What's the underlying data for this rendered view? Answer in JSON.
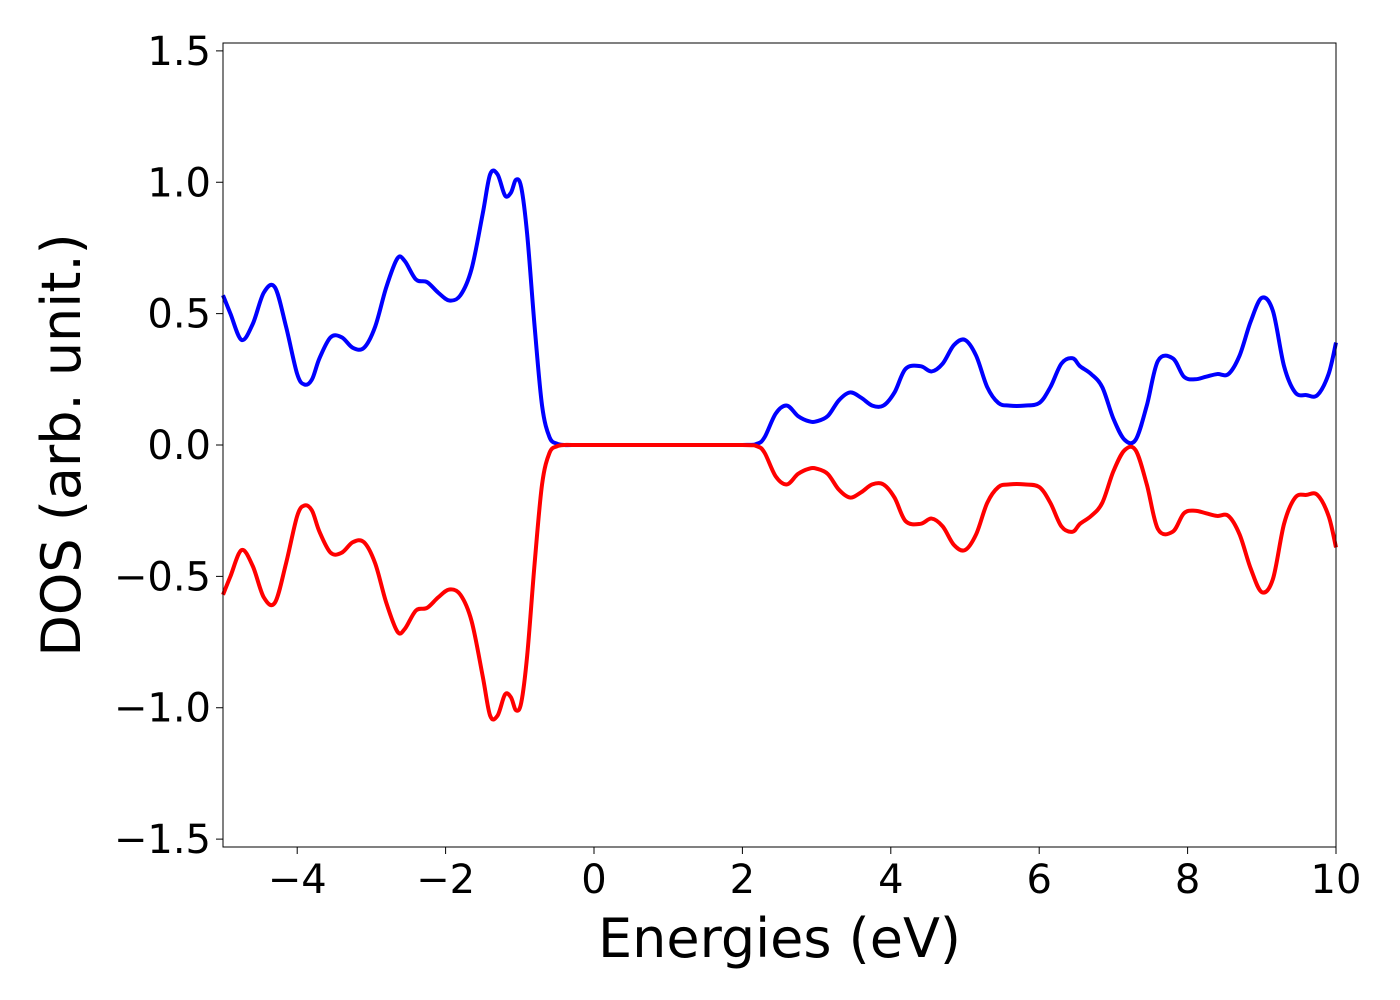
{
  "chart_data": {
    "type": "line",
    "xlabel": "Energies (eV)",
    "ylabel": "DOS (arb. unit.)",
    "xlim": [
      -5,
      10
    ],
    "ylim": [
      -1.53,
      1.53
    ],
    "xticks": [
      -4,
      -2,
      0,
      2,
      4,
      6,
      8,
      10
    ],
    "xtick_labels": [
      "−4",
      "−2",
      "0",
      "2",
      "4",
      "6",
      "8",
      "10"
    ],
    "yticks": [
      1.5,
      1.0,
      0.5,
      0.0,
      -0.5,
      -1.0,
      -1.5
    ],
    "ytick_labels": [
      "1.5",
      "1.0",
      "0.5",
      "0.0",
      "−0.5",
      "−1.0",
      "−1.5"
    ],
    "grid": false,
    "legend": "none",
    "series": [
      {
        "color": "#0000ff",
        "x": [
          -5.0,
          -4.9,
          -4.75,
          -4.6,
          -4.45,
          -4.3,
          -4.15,
          -4.0,
          -3.9,
          -3.8,
          -3.7,
          -3.55,
          -3.4,
          -3.25,
          -3.1,
          -2.95,
          -2.8,
          -2.65,
          -2.55,
          -2.4,
          -2.25,
          -2.1,
          -1.95,
          -1.8,
          -1.65,
          -1.5,
          -1.4,
          -1.3,
          -1.2,
          -1.12,
          -1.05,
          -0.98,
          -0.9,
          -0.8,
          -0.7,
          -0.6,
          -0.5,
          -0.4,
          -0.3,
          0.0,
          1.0,
          2.0,
          2.2,
          2.3,
          2.45,
          2.6,
          2.75,
          2.9,
          3.0,
          3.15,
          3.3,
          3.45,
          3.6,
          3.75,
          3.9,
          4.05,
          4.2,
          4.4,
          4.55,
          4.7,
          4.85,
          5.0,
          5.15,
          5.3,
          5.45,
          5.6,
          5.8,
          6.0,
          6.15,
          6.3,
          6.45,
          6.55,
          6.7,
          6.85,
          7.0,
          7.15,
          7.3,
          7.45,
          7.6,
          7.8,
          7.95,
          8.1,
          8.25,
          8.4,
          8.55,
          8.7,
          8.85,
          9.0,
          9.15,
          9.3,
          9.45,
          9.6,
          9.75,
          9.9,
          10.0
        ],
        "y": [
          0.57,
          0.5,
          0.4,
          0.46,
          0.58,
          0.6,
          0.45,
          0.27,
          0.23,
          0.25,
          0.33,
          0.41,
          0.41,
          0.37,
          0.37,
          0.45,
          0.6,
          0.71,
          0.7,
          0.63,
          0.62,
          0.58,
          0.55,
          0.57,
          0.67,
          0.88,
          1.03,
          1.03,
          0.95,
          0.96,
          1.01,
          0.98,
          0.8,
          0.45,
          0.15,
          0.03,
          0.005,
          0.0,
          0.0,
          0.0,
          0.0,
          0.0,
          0.005,
          0.03,
          0.12,
          0.15,
          0.11,
          0.09,
          0.09,
          0.11,
          0.17,
          0.2,
          0.18,
          0.15,
          0.15,
          0.2,
          0.29,
          0.3,
          0.28,
          0.31,
          0.38,
          0.4,
          0.34,
          0.22,
          0.16,
          0.15,
          0.15,
          0.16,
          0.22,
          0.31,
          0.33,
          0.3,
          0.27,
          0.22,
          0.1,
          0.02,
          0.02,
          0.15,
          0.32,
          0.33,
          0.26,
          0.25,
          0.26,
          0.27,
          0.27,
          0.34,
          0.47,
          0.56,
          0.51,
          0.3,
          0.2,
          0.19,
          0.19,
          0.27,
          0.39
        ]
      },
      {
        "color": "#ff0000",
        "x": [
          -5.0,
          -4.9,
          -4.75,
          -4.6,
          -4.45,
          -4.3,
          -4.15,
          -4.0,
          -3.9,
          -3.8,
          -3.7,
          -3.55,
          -3.4,
          -3.25,
          -3.1,
          -2.95,
          -2.8,
          -2.65,
          -2.55,
          -2.4,
          -2.25,
          -2.1,
          -1.95,
          -1.8,
          -1.65,
          -1.5,
          -1.4,
          -1.3,
          -1.2,
          -1.12,
          -1.05,
          -0.98,
          -0.9,
          -0.8,
          -0.7,
          -0.6,
          -0.5,
          -0.4,
          -0.3,
          0.0,
          1.0,
          2.0,
          2.2,
          2.3,
          2.45,
          2.6,
          2.75,
          2.9,
          3.0,
          3.15,
          3.3,
          3.45,
          3.6,
          3.75,
          3.9,
          4.05,
          4.2,
          4.4,
          4.55,
          4.7,
          4.85,
          5.0,
          5.15,
          5.3,
          5.45,
          5.6,
          5.8,
          6.0,
          6.15,
          6.3,
          6.45,
          6.55,
          6.7,
          6.85,
          7.0,
          7.15,
          7.3,
          7.45,
          7.6,
          7.8,
          7.95,
          8.1,
          8.25,
          8.4,
          8.55,
          8.7,
          8.85,
          9.0,
          9.15,
          9.3,
          9.45,
          9.6,
          9.75,
          9.9,
          10.0
        ],
        "y": [
          -0.57,
          -0.5,
          -0.4,
          -0.46,
          -0.58,
          -0.6,
          -0.45,
          -0.27,
          -0.23,
          -0.25,
          -0.33,
          -0.41,
          -0.41,
          -0.37,
          -0.37,
          -0.45,
          -0.6,
          -0.71,
          -0.7,
          -0.63,
          -0.62,
          -0.58,
          -0.55,
          -0.57,
          -0.67,
          -0.88,
          -1.03,
          -1.03,
          -0.95,
          -0.96,
          -1.01,
          -0.98,
          -0.8,
          -0.45,
          -0.15,
          -0.03,
          -0.005,
          0.0,
          0.0,
          0.0,
          0.0,
          0.0,
          -0.005,
          -0.03,
          -0.12,
          -0.15,
          -0.11,
          -0.09,
          -0.09,
          -0.11,
          -0.17,
          -0.2,
          -0.18,
          -0.15,
          -0.15,
          -0.2,
          -0.29,
          -0.3,
          -0.28,
          -0.31,
          -0.38,
          -0.4,
          -0.34,
          -0.22,
          -0.16,
          -0.15,
          -0.15,
          -0.16,
          -0.22,
          -0.31,
          -0.33,
          -0.3,
          -0.27,
          -0.22,
          -0.1,
          -0.02,
          -0.02,
          -0.15,
          -0.32,
          -0.33,
          -0.26,
          -0.25,
          -0.26,
          -0.27,
          -0.27,
          -0.34,
          -0.47,
          -0.56,
          -0.51,
          -0.3,
          -0.2,
          -0.19,
          -0.19,
          -0.27,
          -0.39
        ]
      }
    ]
  }
}
